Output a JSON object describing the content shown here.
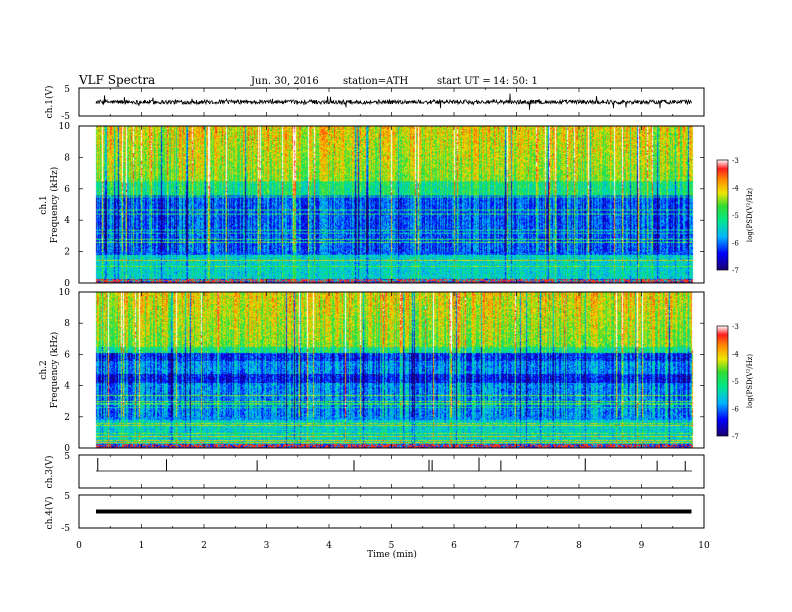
{
  "header": {
    "title": "VLF  Spectra",
    "date": "Jun. 30, 2016",
    "station": "station=ATH",
    "start_label": "start  UT  =",
    "start_time": "14: 50: 1"
  },
  "chart_data": [
    {
      "type": "line",
      "name": "ch1-waveform",
      "ylabel": "ch.1(V)",
      "ylim": [
        -5,
        5
      ],
      "y_ticks": [
        "5",
        "-5"
      ],
      "baseline_v": 0,
      "noise_amplitude_v": 1.5
    },
    {
      "type": "heatmap",
      "name": "ch1-spectrogram",
      "ylabel_channel": "ch.1",
      "ylabel": "Frequency  (kHz)",
      "ylim": [
        0,
        10
      ],
      "y_ticks": [
        "0",
        "2",
        "4",
        "6",
        "8",
        "10"
      ],
      "colorbar": {
        "label": "log(PSD(V²/Hz)",
        "range": [
          -7,
          -3
        ],
        "ticks": [
          "-3",
          "-4",
          "-5",
          "-6",
          "-7"
        ]
      }
    },
    {
      "type": "heatmap",
      "name": "ch2-spectrogram",
      "ylabel_channel": "ch.2",
      "ylabel": "Frequency  (kHz)",
      "ylim": [
        0,
        10
      ],
      "y_ticks": [
        "0",
        "2",
        "4",
        "6",
        "8",
        "10"
      ],
      "colorbar": {
        "label": "log(PSD(V²/Hz)",
        "range": [
          -7,
          -3
        ],
        "ticks": [
          "-3",
          "-4",
          "-5",
          "-6",
          "-7"
        ]
      }
    },
    {
      "type": "line",
      "name": "ch3-waveform",
      "ylabel": "ch.3(V)",
      "ylim": [
        -5,
        5
      ],
      "y_ticks": [
        "5"
      ],
      "spike_times_min": [
        0.3,
        1.4,
        2.85,
        4.4,
        5.6,
        5.65,
        6.4,
        6.75,
        8.1,
        9.25,
        9.7
      ]
    },
    {
      "type": "line",
      "name": "ch4-waveform",
      "ylabel": "ch.4(V)",
      "ylim": [
        -5,
        5
      ],
      "y_ticks": [
        "5",
        "-5"
      ],
      "constant_value_v": 0
    }
  ],
  "time_axis": {
    "xlabel": "Time  (min)",
    "xlim": [
      0,
      10
    ],
    "data_end_min": 9.8,
    "ticks": [
      "0",
      "1",
      "2",
      "3",
      "4",
      "5",
      "6",
      "7",
      "8",
      "9",
      "10"
    ]
  }
}
